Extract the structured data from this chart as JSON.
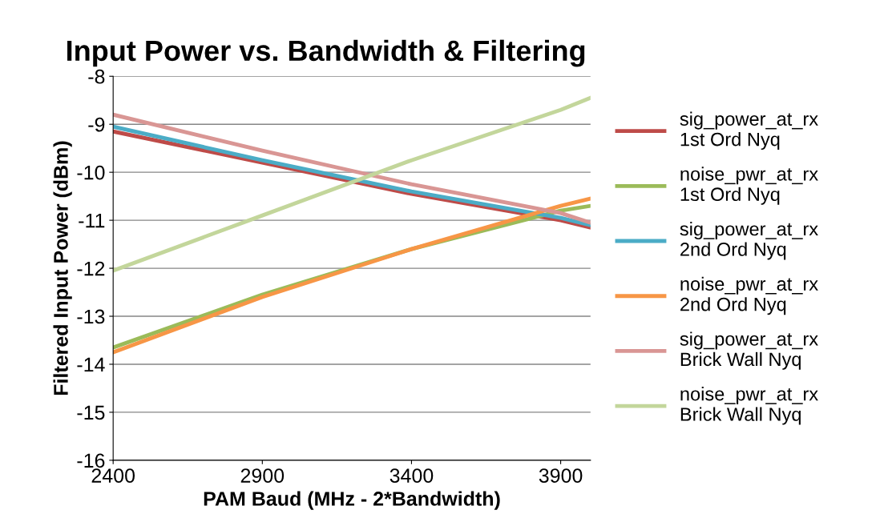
{
  "chart_data": {
    "type": "line",
    "title": "Input Power vs. Bandwidth & Filtering",
    "xlabel": "PAM Baud (MHz - 2*Bandwidth)",
    "ylabel": "Filtered Input Power (dBm)",
    "x": [
      2400,
      2900,
      3400,
      3900,
      4000
    ],
    "series": [
      {
        "name": "sig_power_at_rx\n1st Ord Nyq",
        "color": "#be4b48",
        "values": [
          -9.15,
          -9.8,
          -10.45,
          -11.0,
          -11.15
        ]
      },
      {
        "name": "noise_pwr_at_rx\n1st Ord Nyq",
        "color": "#9bbb59",
        "values": [
          -13.65,
          -12.55,
          -11.6,
          -10.8,
          -10.7
        ]
      },
      {
        "name": "sig_power_at_rx\n2nd Ord Nyq",
        "color": "#4bacc6",
        "values": [
          -9.05,
          -9.75,
          -10.4,
          -10.95,
          -11.1
        ]
      },
      {
        "name": "noise_pwr_at_rx\n2nd Ord Nyq",
        "color": "#f79646",
        "values": [
          -13.75,
          -12.6,
          -11.6,
          -10.7,
          -10.55
        ]
      },
      {
        "name": "sig_power_at_rx\nBrick Wall Nyq",
        "color": "#d99694",
        "values": [
          -8.8,
          -9.55,
          -10.25,
          -10.85,
          -11.05
        ]
      },
      {
        "name": "noise_pwr_at_rx\nBrick Wall Nyq",
        "color": "#c3d69b",
        "values": [
          -12.05,
          -10.9,
          -9.75,
          -8.7,
          -8.45
        ]
      }
    ],
    "xlim": [
      2400,
      4000
    ],
    "xticks": [
      2400,
      2900,
      3400,
      3900
    ],
    "ylim": [
      -16,
      -8
    ],
    "yticks": [
      -16,
      -15,
      -14,
      -13,
      -12,
      -11,
      -10,
      -9,
      -8
    ],
    "grid": "y",
    "legend": "right",
    "marker": "none",
    "line_style": "solid"
  }
}
